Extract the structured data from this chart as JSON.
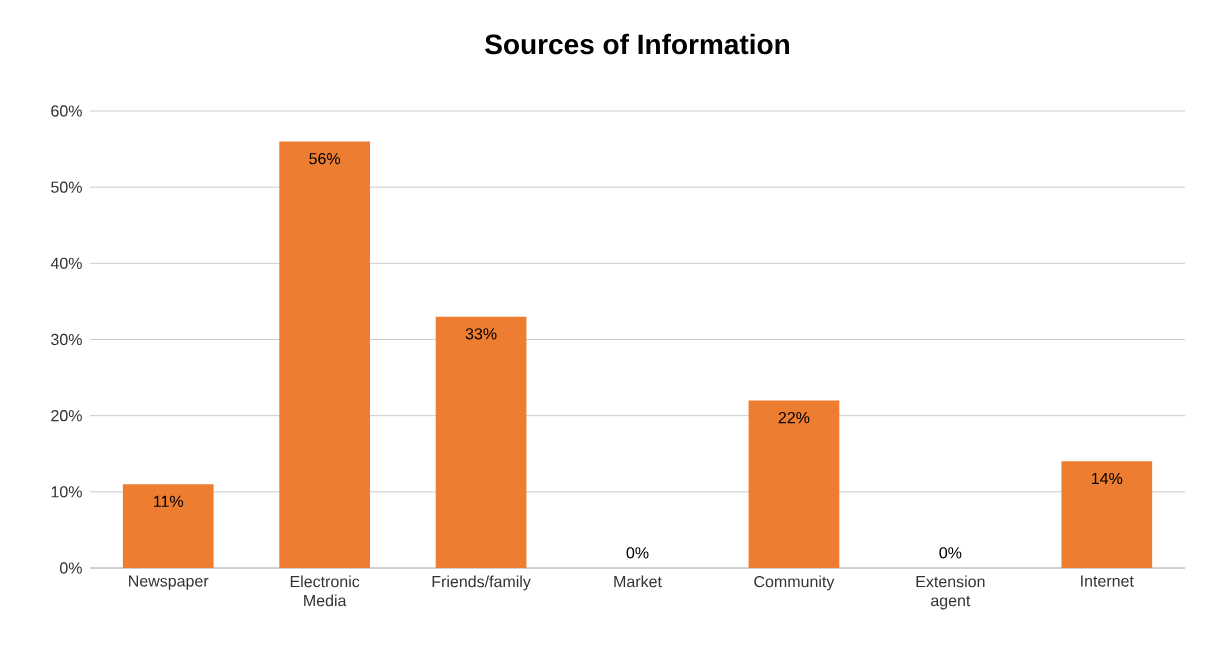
{
  "chart_data": {
    "type": "bar",
    "title": "Sources of Information",
    "categories": [
      "Newspaper",
      "Electronic Media",
      "Friends/family",
      "Market",
      "Community",
      "Extension agent",
      "Internet"
    ],
    "values": [
      11,
      56,
      33,
      0,
      22,
      0,
      14
    ],
    "value_labels": [
      "11%",
      "56%",
      "33%",
      "0%",
      "22%",
      "0%",
      "14%"
    ],
    "color": "#ed7d31",
    "ylim": [
      0,
      60
    ],
    "yticks": [
      {
        "value": 0,
        "label": "0%"
      },
      {
        "value": 10,
        "label": "10%"
      },
      {
        "value": 20,
        "label": "20%"
      },
      {
        "value": 30,
        "label": "30%"
      },
      {
        "value": 40,
        "label": "40%"
      },
      {
        "value": 50,
        "label": "50%"
      },
      {
        "value": 60,
        "label": "60%"
      }
    ],
    "grid": "y"
  }
}
